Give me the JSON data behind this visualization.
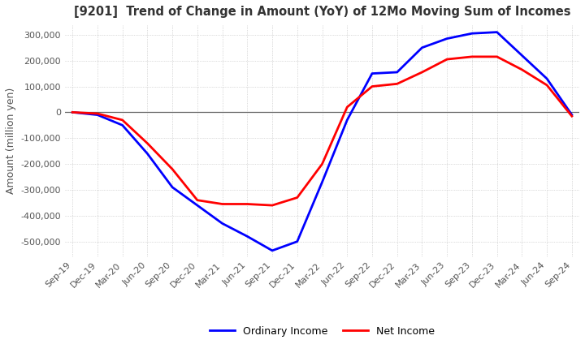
{
  "title": "[9201]  Trend of Change in Amount (YoY) of 12Mo Moving Sum of Incomes",
  "ylabel": "Amount (million yen)",
  "ylim": [
    -560000,
    340000
  ],
  "yticks": [
    -500000,
    -400000,
    -300000,
    -200000,
    -100000,
    0,
    100000,
    200000,
    300000
  ],
  "legend_labels": [
    "Ordinary Income",
    "Net Income"
  ],
  "colors": [
    "#0000ff",
    "#ff0000"
  ],
  "x_labels": [
    "Sep-19",
    "Dec-19",
    "Mar-20",
    "Jun-20",
    "Sep-20",
    "Dec-20",
    "Mar-21",
    "Jun-21",
    "Sep-21",
    "Dec-21",
    "Mar-22",
    "Jun-22",
    "Sep-22",
    "Dec-22",
    "Mar-23",
    "Jun-23",
    "Sep-23",
    "Dec-23",
    "Mar-24",
    "Jun-24",
    "Sep-24"
  ],
  "ordinary_income": [
    0,
    -10000,
    -50000,
    -160000,
    -290000,
    -360000,
    -430000,
    -480000,
    -535000,
    -500000,
    -270000,
    -30000,
    150000,
    155000,
    250000,
    285000,
    305000,
    310000,
    220000,
    130000,
    -10000
  ],
  "net_income": [
    0,
    -5000,
    -30000,
    -120000,
    -220000,
    -340000,
    -355000,
    -355000,
    -360000,
    -330000,
    -200000,
    20000,
    100000,
    110000,
    155000,
    205000,
    215000,
    215000,
    165000,
    105000,
    -15000
  ],
  "background_color": "#ffffff",
  "grid_color": "#bbbbbb",
  "title_color": "#333333"
}
